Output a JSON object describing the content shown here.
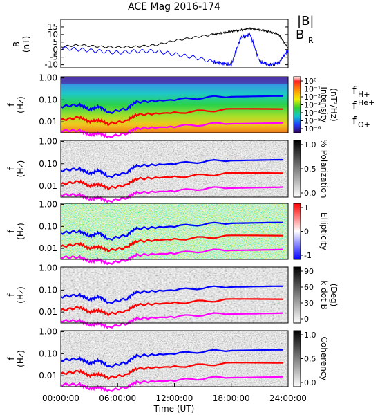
{
  "title": "ACE Mag 2016-174",
  "x_axis": {
    "label": "Time (UT)",
    "ticks": [
      "00:00:00",
      "06:00:00",
      "12:00:00",
      "18:00:00",
      "24:00:00"
    ],
    "range_hours": [
      0,
      24
    ]
  },
  "freq_axis": {
    "label": "f",
    "unit": "(Hz)",
    "ticks": [
      "1.00",
      "0.10",
      "0.01"
    ]
  },
  "line_legend": {
    "b_total": "|B|",
    "b_r": "B",
    "b_r_sub": "R",
    "fh": "f",
    "fh_sub": "H+",
    "fhe": "f",
    "fhe_sub": "He+",
    "fo": "f",
    "fo_sub": "O+"
  },
  "colors": {
    "b_total": "#000000",
    "b_r": "#0000ff",
    "fh": "#0000ff",
    "fhe": "#ff0000",
    "fo": "#ff00ff"
  },
  "chart_data": [
    {
      "type": "line",
      "title": "ACE Mag 2016-174",
      "ylabel": "B",
      "yunit": "(nT)",
      "ylim": [
        -12,
        20
      ],
      "yticks": [
        "15",
        "10",
        "5",
        "0",
        "-5",
        "-10"
      ],
      "x": [
        0,
        2,
        4,
        6,
        8,
        10,
        12,
        14,
        16,
        17,
        18,
        19,
        20,
        21,
        22,
        23,
        24
      ],
      "series": [
        {
          "name": "|B|",
          "values": [
            2,
            3,
            2,
            1.5,
            2,
            3,
            6,
            8,
            10,
            11,
            12,
            13,
            14,
            13,
            12,
            10,
            1
          ]
        },
        {
          "name": "BR",
          "values": [
            1,
            0,
            -1,
            -2,
            -1,
            -1,
            -3,
            -5,
            -8,
            -9,
            -10,
            8,
            10,
            -8,
            -10,
            -9,
            0
          ]
        }
      ]
    },
    {
      "type": "heatmap",
      "colorbar_label": "Intensity",
      "colorbar_unit": "(nT²/Hz)",
      "colorbar_ticks": [
        "10⁰",
        "10⁻¹",
        "10⁻²",
        "10⁻³",
        "10⁻⁴",
        "10⁻⁵",
        "10⁻⁶"
      ],
      "x": [
        0,
        2,
        3,
        4,
        5,
        7,
        8,
        12,
        18,
        23.5
      ],
      "series": [
        {
          "name": "fH+",
          "values": [
            0.05,
            0.06,
            0.035,
            0.05,
            0.025,
            0.04,
            0.08,
            0.1,
            0.15,
            0.15
          ]
        },
        {
          "name": "fHe+",
          "values": [
            0.012,
            0.016,
            0.01,
            0.012,
            0.008,
            0.011,
            0.021,
            0.026,
            0.036,
            0.038
          ]
        },
        {
          "name": "fO+",
          "values": [
            0.004,
            0.004,
            0.0025,
            0.003,
            0.002,
            0.003,
            0.005,
            0.006,
            0.009,
            0.009
          ]
        }
      ]
    },
    {
      "type": "heatmap",
      "colorbar_label": "% Polarization",
      "colorbar_ticks": [
        "1.0",
        "0.5",
        "0.0"
      ]
    },
    {
      "type": "heatmap",
      "colorbar_label": "Ellipticity",
      "colorbar_ticks": [
        "1",
        "0",
        "-1"
      ]
    },
    {
      "type": "heatmap",
      "colorbar_label": "k dot B",
      "colorbar_unit": "(Deg)",
      "colorbar_ticks": [
        "90",
        "60",
        "30",
        "0"
      ]
    },
    {
      "type": "heatmap",
      "colorbar_label": "Coherency",
      "colorbar_ticks": [
        "1.0",
        "0.5",
        "0.0"
      ]
    }
  ]
}
